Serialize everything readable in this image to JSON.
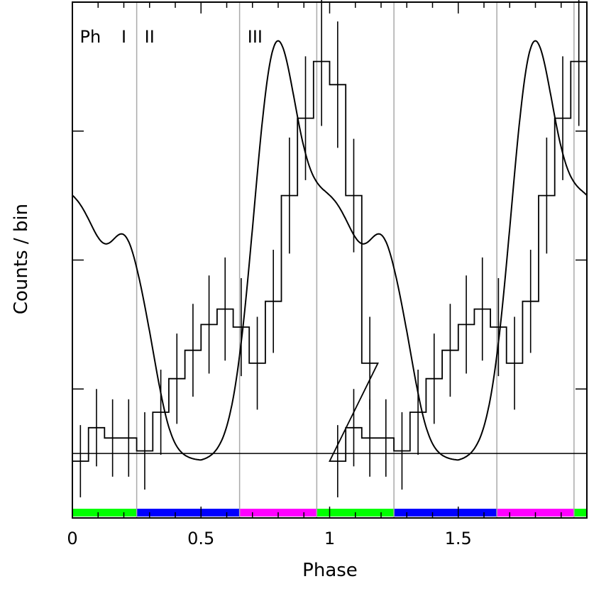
{
  "chart_data": {
    "type": "line",
    "title": "",
    "xlabel": "Phase",
    "ylabel": "Counts / bin",
    "xlim": [
      0,
      2
    ],
    "ylim": [
      0,
      4
    ],
    "grid": false,
    "legend": "none",
    "x_ticks": [
      {
        "value": 0,
        "label": "0"
      },
      {
        "value": 0.5,
        "label": "0.5"
      },
      {
        "value": 1,
        "label": "1"
      },
      {
        "value": 1.5,
        "label": "1.5"
      }
    ],
    "y_ticks": [
      1,
      2,
      3,
      4
    ],
    "phase_boundaries": [
      0.25,
      0.65,
      0.95,
      1.25,
      1.65,
      1.95
    ],
    "phase_labels": [
      {
        "x": 0.07,
        "text": "Ph"
      },
      {
        "x": 0.2,
        "text": "I"
      },
      {
        "x": 0.3,
        "text": "II"
      },
      {
        "x": 0.71,
        "text": "III"
      }
    ],
    "baseline": 0.5,
    "bin_width": 0.0625,
    "histogram": {
      "name": "",
      "values": [
        0.44,
        0.7,
        0.62,
        0.62,
        0.52,
        0.82,
        1.08,
        1.3,
        1.5,
        1.62,
        1.48,
        1.2,
        1.68,
        2.5,
        3.1,
        3.54,
        3.36,
        2.5,
        1.2
      ],
      "errors": [
        0.28,
        0.3,
        0.3,
        0.3,
        0.3,
        0.33,
        0.35,
        0.36,
        0.38,
        0.4,
        0.38,
        0.36,
        0.4,
        0.45,
        0.48,
        0.5,
        0.49,
        0.44,
        0.36
      ]
    },
    "model": {
      "name": "",
      "amplitudes": [
        1.0,
        0.15,
        1.2,
        0.3,
        0.2
      ],
      "phases": [
        0.0,
        0.25,
        0.78,
        0.2,
        0.3
      ]
    },
    "phase_bar": [
      {
        "from": 0.0,
        "to": 0.25,
        "color": "#00ff00"
      },
      {
        "from": 0.25,
        "to": 0.65,
        "color": "#0000ff"
      },
      {
        "from": 0.65,
        "to": 0.95,
        "color": "#ff00ff"
      },
      {
        "from": 0.95,
        "to": 1.25,
        "color": "#00ff00"
      },
      {
        "from": 1.25,
        "to": 1.65,
        "color": "#0000ff"
      },
      {
        "from": 1.65,
        "to": 1.95,
        "color": "#ff00ff"
      },
      {
        "from": 1.95,
        "to": 2.0,
        "color": "#00ff00"
      }
    ],
    "colors": {
      "axes": "#000000",
      "boundaries": "#aaaaaa",
      "data": "#000000"
    }
  }
}
